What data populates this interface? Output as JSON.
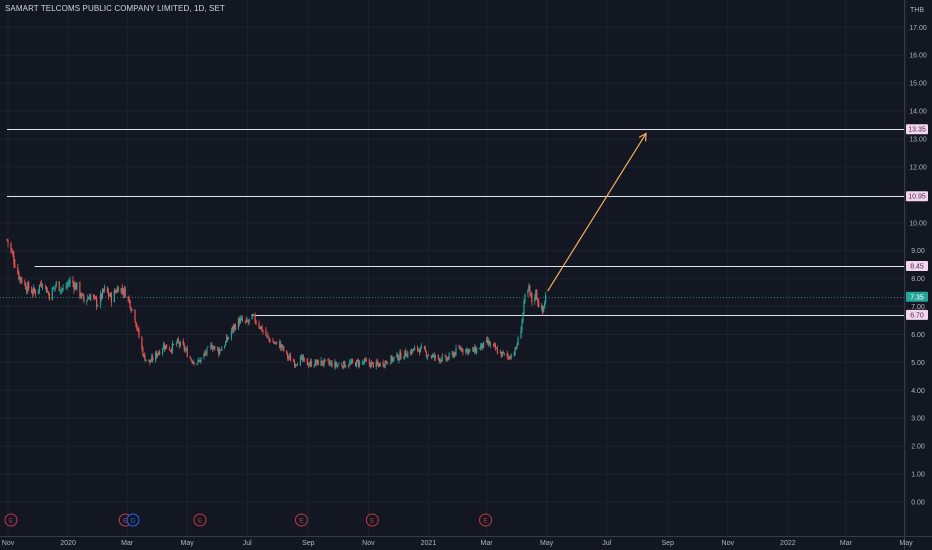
{
  "header": {
    "symbol_title": "SAMART TELCOMS PUBLIC COMPANY LIMITED, 1D, SET",
    "currency": "THB"
  },
  "colors": {
    "background": "#131722",
    "grid": "#1e222d",
    "text": "#b2b5be",
    "up": "#26a69a",
    "down": "#ef5350",
    "level_line": "#e0e3eb",
    "level_label_bg": "#f3d5ec",
    "level_label_text": "#4a2a55",
    "last_price_bg": "#26a69a",
    "arrow": "#f5ad5b",
    "event_earnings": "#c2374a",
    "event_dividend": "#2962ff"
  },
  "chart_data": {
    "type": "candlestick",
    "y_scale": "linear",
    "ylim": [
      0,
      17.5
    ],
    "y_ticks": [
      "0.00",
      "1.00",
      "2.00",
      "3.00",
      "4.00",
      "5.00",
      "6.00",
      "7.00",
      "8.00",
      "9.00",
      "10.00",
      "11.00",
      "12.00",
      "13.00",
      "14.00",
      "15.00",
      "16.00",
      "17.00"
    ],
    "x_ticks": [
      "Nov",
      "2020",
      "Mar",
      "May",
      "Jul",
      "Sep",
      "Nov",
      "2021",
      "Mar",
      "May",
      "Jul",
      "Sep",
      "Nov",
      "2022",
      "Mar",
      "May"
    ],
    "x_tick_dates": [
      "2019-11-01",
      "2020-01-01",
      "2020-03-01",
      "2020-05-01",
      "2020-07-01",
      "2020-09-01",
      "2020-11-01",
      "2021-01-01",
      "2021-03-01",
      "2021-05-01",
      "2021-07-01",
      "2021-09-01",
      "2021-11-01",
      "2022-01-01",
      "2022-03-01",
      "2022-05-01"
    ],
    "grid": true,
    "price_path": [
      [
        "2019-10-31",
        9.4
      ],
      [
        "2019-11-05",
        8.9
      ],
      [
        "2019-11-12",
        8.1
      ],
      [
        "2019-11-20",
        7.7
      ],
      [
        "2019-11-28",
        7.5
      ],
      [
        "2019-12-06",
        7.9
      ],
      [
        "2019-12-13",
        7.4
      ],
      [
        "2019-12-20",
        7.8
      ],
      [
        "2019-12-27",
        7.6
      ],
      [
        "2020-01-03",
        7.9
      ],
      [
        "2020-01-10",
        7.7
      ],
      [
        "2020-01-17",
        7.2
      ],
      [
        "2020-01-24",
        7.4
      ],
      [
        "2020-01-31",
        7.1
      ],
      [
        "2020-02-07",
        7.6
      ],
      [
        "2020-02-14",
        7.3
      ],
      [
        "2020-02-21",
        7.7
      ],
      [
        "2020-02-28",
        7.5
      ],
      [
        "2020-03-03",
        7.2
      ],
      [
        "2020-03-09",
        6.6
      ],
      [
        "2020-03-13",
        5.9
      ],
      [
        "2020-03-18",
        5.2
      ],
      [
        "2020-03-24",
        5.0
      ],
      [
        "2020-03-31",
        5.3
      ],
      [
        "2020-04-07",
        5.6
      ],
      [
        "2020-04-14",
        5.5
      ],
      [
        "2020-04-21",
        5.7
      ],
      [
        "2020-04-28",
        5.5
      ],
      [
        "2020-05-05",
        5.1
      ],
      [
        "2020-05-12",
        5.0
      ],
      [
        "2020-05-19",
        5.3
      ],
      [
        "2020-05-26",
        5.6
      ],
      [
        "2020-06-02",
        5.4
      ],
      [
        "2020-06-09",
        5.7
      ],
      [
        "2020-06-16",
        6.2
      ],
      [
        "2020-06-23",
        6.5
      ],
      [
        "2020-06-30",
        6.4
      ],
      [
        "2020-07-07",
        6.6
      ],
      [
        "2020-07-14",
        6.3
      ],
      [
        "2020-07-21",
        5.9
      ],
      [
        "2020-07-28",
        5.7
      ],
      [
        "2020-08-04",
        5.6
      ],
      [
        "2020-08-11",
        5.2
      ],
      [
        "2020-08-18",
        5.0
      ],
      [
        "2020-08-25",
        5.1
      ],
      [
        "2020-09-01",
        4.95
      ],
      [
        "2020-09-15",
        5.0
      ],
      [
        "2020-09-29",
        4.9
      ],
      [
        "2020-10-13",
        4.95
      ],
      [
        "2020-10-27",
        5.0
      ],
      [
        "2020-11-10",
        4.9
      ],
      [
        "2020-11-24",
        5.1
      ],
      [
        "2020-12-08",
        5.3
      ],
      [
        "2020-12-22",
        5.5
      ],
      [
        "2021-01-05",
        5.2
      ],
      [
        "2021-01-19",
        5.1
      ],
      [
        "2021-02-02",
        5.5
      ],
      [
        "2021-02-16",
        5.4
      ],
      [
        "2021-03-02",
        5.7
      ],
      [
        "2021-03-16",
        5.3
      ],
      [
        "2021-03-23",
        5.2
      ],
      [
        "2021-03-30",
        5.4
      ],
      [
        "2021-04-03",
        5.9
      ],
      [
        "2021-04-06",
        6.5
      ],
      [
        "2021-04-09",
        7.3
      ],
      [
        "2021-04-13",
        7.6
      ],
      [
        "2021-04-16",
        7.2
      ],
      [
        "2021-04-20",
        7.5
      ],
      [
        "2021-04-23",
        7.1
      ],
      [
        "2021-04-27",
        6.8
      ],
      [
        "2021-04-30",
        7.35
      ]
    ],
    "events": [
      {
        "date": "2019-11-04",
        "label": "E"
      },
      {
        "date": "2020-02-28",
        "label": "E"
      },
      {
        "date": "2020-03-07",
        "label": "D"
      },
      {
        "date": "2020-05-14",
        "label": "E"
      },
      {
        "date": "2020-08-25",
        "label": "E"
      },
      {
        "date": "2020-11-05",
        "label": "E"
      },
      {
        "date": "2021-02-28",
        "label": "E"
      }
    ],
    "horizontal_levels": [
      {
        "value": 13.35,
        "label": "13.35",
        "start": "2019-10-31"
      },
      {
        "value": 10.95,
        "label": "10.95",
        "start": "2019-10-31"
      },
      {
        "value": 8.45,
        "label": "8.45",
        "start": "2019-11-28"
      },
      {
        "value": 6.7,
        "label": "6.70",
        "start": "2020-07-05"
      }
    ],
    "last_price": {
      "value": 7.35,
      "label": "7.35"
    },
    "projection_arrow": {
      "from": [
        "2021-05-02",
        7.55
      ],
      "to": [
        "2021-08-10",
        13.2
      ]
    }
  }
}
